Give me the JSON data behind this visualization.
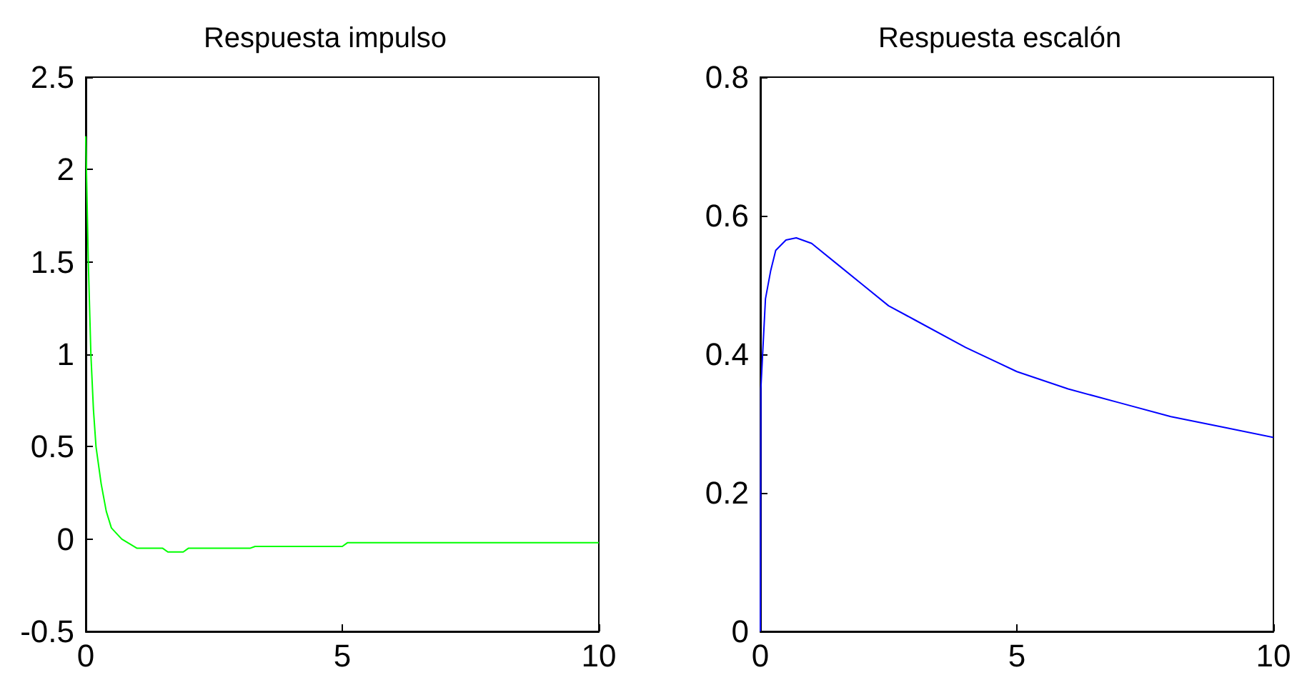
{
  "chart_data": [
    {
      "type": "line",
      "title": "Respuesta impulso",
      "xlim": [
        0,
        10
      ],
      "xticks": [
        0,
        5,
        10
      ],
      "ylim": [
        -0.5,
        2.5
      ],
      "yticks": [
        -0.5,
        0,
        0.5,
        1,
        1.5,
        2,
        2.5
      ],
      "grid": false,
      "marker": "none",
      "series": [
        {
          "color": "#00ff00",
          "x": [
            0,
            0.05,
            0.1,
            0.15,
            0.2,
            0.3,
            0.4,
            0.5,
            0.7,
            1.0,
            1.5,
            1.6,
            1.9,
            2.0,
            3.2,
            3.3,
            5.0,
            5.1,
            10
          ],
          "values": [
            2.18,
            1.5,
            1.0,
            0.7,
            0.5,
            0.3,
            0.15,
            0.06,
            0.0,
            -0.05,
            -0.05,
            -0.07,
            -0.07,
            -0.05,
            -0.05,
            -0.04,
            -0.04,
            -0.02,
            -0.02
          ]
        }
      ]
    },
    {
      "type": "line",
      "title": "Respuesta escalón",
      "xlim": [
        0,
        10
      ],
      "xticks": [
        0,
        5,
        10
      ],
      "ylim": [
        0,
        0.8
      ],
      "yticks": [
        0,
        0.2,
        0.4,
        0.6,
        0.8
      ],
      "grid": false,
      "marker": "none",
      "series": [
        {
          "color": "#0000ff",
          "x": [
            0,
            0.01,
            0.1,
            0.2,
            0.3,
            0.5,
            0.7,
            1.0,
            1.5,
            2.0,
            2.5,
            3.0,
            4.0,
            5.0,
            6.0,
            7.0,
            8.0,
            9.0,
            10
          ],
          "values": [
            0,
            0.35,
            0.48,
            0.52,
            0.55,
            0.565,
            0.568,
            0.56,
            0.53,
            0.5,
            0.47,
            0.45,
            0.41,
            0.375,
            0.35,
            0.33,
            0.31,
            0.295,
            0.28
          ]
        }
      ]
    }
  ]
}
